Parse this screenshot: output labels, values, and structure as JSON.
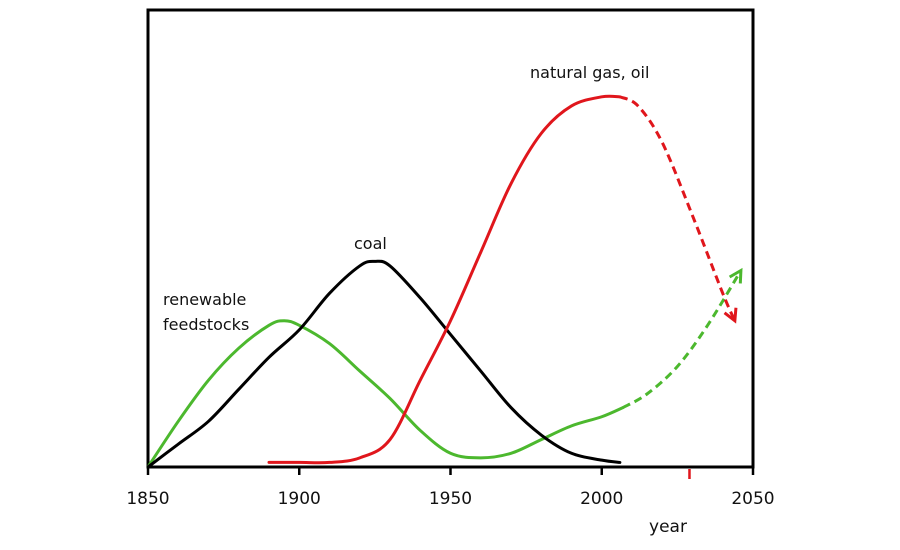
{
  "chart_data": {
    "type": "line",
    "title": "",
    "xlabel": "year",
    "ylabel": "",
    "xlim": [
      1850,
      2050
    ],
    "ylim": [
      0,
      100
    ],
    "x_ticks": [
      "1850",
      "1900",
      "1950",
      "2000",
      "2050"
    ],
    "y_ticks": [],
    "grid": false,
    "marker_year": 2029,
    "series": [
      {
        "name": "renewable feedstocks",
        "color": "#4cb82e",
        "solid": [
          [
            1850,
            0
          ],
          [
            1860,
            10
          ],
          [
            1870,
            19
          ],
          [
            1880,
            26
          ],
          [
            1890,
            31
          ],
          [
            1895,
            32
          ],
          [
            1900,
            31
          ],
          [
            1910,
            27
          ],
          [
            1920,
            21
          ],
          [
            1930,
            15
          ],
          [
            1940,
            8
          ],
          [
            1950,
            3
          ],
          [
            1960,
            2
          ],
          [
            1970,
            3
          ],
          [
            1980,
            6
          ],
          [
            1990,
            9
          ],
          [
            2000,
            11
          ],
          [
            2007,
            13
          ]
        ],
        "projected": [
          [
            2007,
            13
          ],
          [
            2015,
            16
          ],
          [
            2025,
            22
          ],
          [
            2035,
            31
          ],
          [
            2046,
            43
          ]
        ]
      },
      {
        "name": "coal",
        "color": "#000000",
        "solid": [
          [
            1850,
            0
          ],
          [
            1860,
            5
          ],
          [
            1870,
            10
          ],
          [
            1880,
            17
          ],
          [
            1890,
            24
          ],
          [
            1900,
            30
          ],
          [
            1910,
            38
          ],
          [
            1920,
            44
          ],
          [
            1925,
            45
          ],
          [
            1930,
            44
          ],
          [
            1940,
            37
          ],
          [
            1950,
            29
          ],
          [
            1960,
            21
          ],
          [
            1970,
            13
          ],
          [
            1980,
            7
          ],
          [
            1990,
            3
          ],
          [
            2000,
            1.5
          ],
          [
            2006,
            1
          ]
        ],
        "projected": []
      },
      {
        "name": "natural gas, oil",
        "color": "#e0161c",
        "solid": [
          [
            1890,
            1
          ],
          [
            1900,
            1
          ],
          [
            1910,
            1
          ],
          [
            1920,
            2
          ],
          [
            1930,
            6
          ],
          [
            1940,
            19
          ],
          [
            1950,
            32
          ],
          [
            1960,
            47
          ],
          [
            1970,
            62
          ],
          [
            1980,
            73
          ],
          [
            1990,
            79
          ],
          [
            2000,
            81
          ],
          [
            2006,
            81
          ]
        ],
        "projected": [
          [
            2006,
            81
          ],
          [
            2012,
            79
          ],
          [
            2020,
            71
          ],
          [
            2030,
            55
          ],
          [
            2040,
            38
          ],
          [
            2044,
            32
          ]
        ]
      }
    ],
    "annotations": {
      "renewable_line1": "renewable",
      "renewable_line2": "feedstocks",
      "coal": "coal",
      "gas": "natural gas, oil"
    }
  }
}
